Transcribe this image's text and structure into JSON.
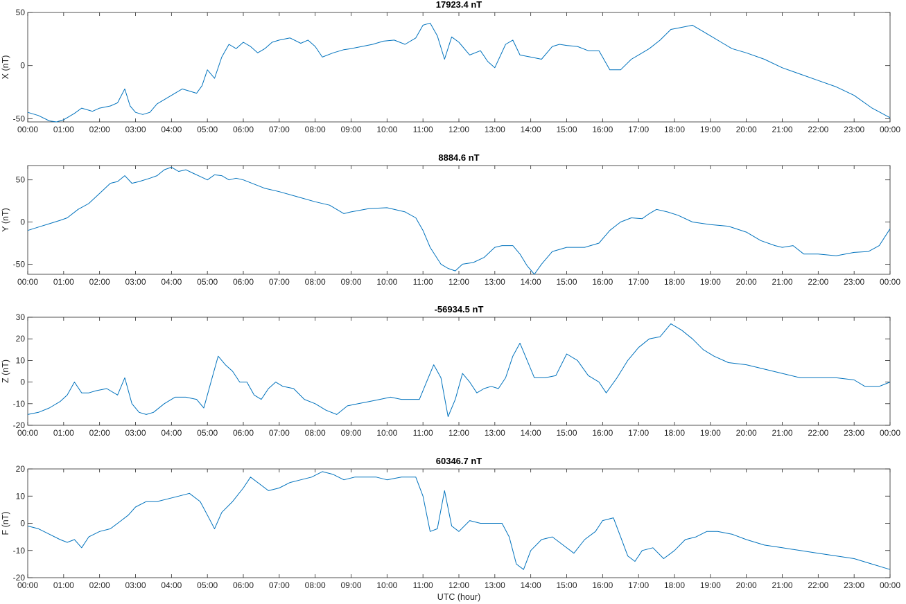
{
  "figure": {
    "xlabel": "UTC (hour)",
    "line_color": "#0072bd"
  },
  "chart_data": [
    {
      "type": "line",
      "title": "17923.4 nT",
      "ylabel": "X (nT)",
      "xlabel": "",
      "ylim": [
        -53,
        50
      ],
      "yticks": [
        -50,
        0,
        50
      ],
      "xticks": [
        "00:00",
        "01:00",
        "02:00",
        "03:00",
        "04:00",
        "05:00",
        "06:00",
        "07:00",
        "08:00",
        "09:00",
        "10:00",
        "11:00",
        "12:00",
        "13:00",
        "14:00",
        "15:00",
        "16:00",
        "17:00",
        "18:00",
        "19:00",
        "20:00",
        "21:00",
        "22:00",
        "23:00",
        "00:00"
      ],
      "xlim": [
        0,
        24
      ],
      "grid": false,
      "series": [
        {
          "x": [
            0,
            0.3,
            0.6,
            0.8,
            1.0,
            1.3,
            1.5,
            1.8,
            2.0,
            2.3,
            2.5,
            2.7,
            2.85,
            3.0,
            3.2,
            3.4,
            3.6,
            3.8,
            4.0,
            4.3,
            4.5,
            4.7,
            4.85,
            5.0,
            5.2,
            5.4,
            5.6,
            5.8,
            6.0,
            6.2,
            6.4,
            6.6,
            6.8,
            7.0,
            7.3,
            7.6,
            7.8,
            8.0,
            8.2,
            8.5,
            8.8,
            9.0,
            9.3,
            9.6,
            9.9,
            10.2,
            10.5,
            10.8,
            11.0,
            11.2,
            11.4,
            11.6,
            11.8,
            12.0,
            12.3,
            12.6,
            12.8,
            13.0,
            13.3,
            13.5,
            13.7,
            14.0,
            14.3,
            14.6,
            14.8,
            15.0,
            15.3,
            15.6,
            15.9,
            16.2,
            16.5,
            16.8,
            17.0,
            17.3,
            17.6,
            17.9,
            18.2,
            18.5,
            18.8,
            19.0,
            19.3,
            19.6,
            20.0,
            20.5,
            21.0,
            21.5,
            22.0,
            22.5,
            23.0,
            23.5,
            24.0
          ],
          "y": [
            -44,
            -47,
            -52,
            -53,
            -51,
            -45,
            -40,
            -43,
            -40,
            -38,
            -35,
            -22,
            -38,
            -44,
            -46,
            -44,
            -36,
            -32,
            -28,
            -22,
            -24,
            -26,
            -19,
            -4,
            -12,
            8,
            20,
            16,
            22,
            18,
            12,
            16,
            22,
            24,
            26,
            21,
            24,
            18,
            8,
            12,
            15,
            16,
            18,
            20,
            23,
            24,
            20,
            26,
            38,
            40,
            28,
            6,
            27,
            22,
            10,
            14,
            4,
            -2,
            20,
            24,
            10,
            8,
            6,
            18,
            20,
            19,
            18,
            14,
            14,
            -4,
            -4,
            6,
            10,
            16,
            24,
            34,
            36,
            38,
            32,
            28,
            22,
            16,
            12,
            6,
            -2,
            -8,
            -14,
            -20,
            -28,
            -40,
            -49
          ]
        }
      ]
    },
    {
      "type": "line",
      "title": "8884.6 nT",
      "ylabel": "Y (nT)",
      "xlabel": "",
      "ylim": [
        -62,
        67
      ],
      "yticks": [
        -50,
        0,
        50
      ],
      "xticks": [
        "00:00",
        "01:00",
        "02:00",
        "03:00",
        "04:00",
        "05:00",
        "06:00",
        "07:00",
        "08:00",
        "09:00",
        "10:00",
        "11:00",
        "12:00",
        "13:00",
        "14:00",
        "15:00",
        "16:00",
        "17:00",
        "18:00",
        "19:00",
        "20:00",
        "21:00",
        "22:00",
        "23:00",
        "00:00"
      ],
      "xlim": [
        0,
        24
      ],
      "grid": false,
      "series": [
        {
          "x": [
            0,
            0.3,
            0.6,
            0.9,
            1.1,
            1.4,
            1.7,
            2.0,
            2.3,
            2.5,
            2.7,
            2.9,
            3.1,
            3.4,
            3.6,
            3.8,
            4.0,
            4.2,
            4.4,
            4.6,
            4.8,
            5.0,
            5.2,
            5.4,
            5.6,
            5.8,
            6.0,
            6.3,
            6.6,
            7.0,
            7.5,
            8.0,
            8.4,
            8.8,
            9.0,
            9.5,
            10.0,
            10.5,
            10.8,
            11.0,
            11.2,
            11.5,
            11.7,
            11.9,
            12.1,
            12.4,
            12.7,
            13.0,
            13.2,
            13.5,
            13.7,
            13.9,
            14.1,
            14.3,
            14.6,
            15.0,
            15.5,
            15.9,
            16.2,
            16.5,
            16.8,
            17.1,
            17.3,
            17.5,
            17.8,
            18.1,
            18.5,
            19.0,
            19.5,
            20.0,
            20.4,
            20.8,
            21.0,
            21.3,
            21.6,
            22.0,
            22.5,
            23.0,
            23.4,
            23.7,
            24.0
          ],
          "y": [
            -10,
            -6,
            -2,
            2,
            5,
            15,
            22,
            34,
            46,
            48,
            55,
            46,
            48,
            52,
            55,
            62,
            65,
            60,
            62,
            58,
            54,
            50,
            56,
            55,
            50,
            52,
            50,
            45,
            40,
            36,
            30,
            24,
            20,
            10,
            12,
            16,
            17,
            12,
            5,
            -10,
            -30,
            -50,
            -55,
            -58,
            -50,
            -48,
            -42,
            -30,
            -28,
            -28,
            -38,
            -52,
            -62,
            -50,
            -35,
            -30,
            -30,
            -25,
            -10,
            0,
            5,
            4,
            10,
            15,
            12,
            8,
            0,
            -3,
            -5,
            -12,
            -22,
            -28,
            -30,
            -28,
            -38,
            -38,
            -40,
            -36,
            -35,
            -28,
            -8
          ]
        }
      ]
    },
    {
      "type": "line",
      "title": "-56934.5 nT",
      "ylabel": "Z (nT)",
      "xlabel": "",
      "ylim": [
        -20,
        30
      ],
      "yticks": [
        -20,
        -10,
        0,
        10,
        20,
        30
      ],
      "xticks": [
        "00:00",
        "01:00",
        "02:00",
        "03:00",
        "04:00",
        "05:00",
        "06:00",
        "07:00",
        "08:00",
        "09:00",
        "10:00",
        "11:00",
        "12:00",
        "13:00",
        "14:00",
        "15:00",
        "16:00",
        "17:00",
        "18:00",
        "19:00",
        "20:00",
        "21:00",
        "22:00",
        "23:00",
        "00:00"
      ],
      "xlim": [
        0,
        24
      ],
      "grid": false,
      "series": [
        {
          "x": [
            0,
            0.3,
            0.6,
            0.9,
            1.1,
            1.3,
            1.5,
            1.7,
            1.9,
            2.2,
            2.5,
            2.7,
            2.9,
            3.1,
            3.3,
            3.5,
            3.8,
            4.1,
            4.4,
            4.7,
            4.9,
            5.1,
            5.3,
            5.5,
            5.7,
            5.9,
            6.1,
            6.3,
            6.5,
            6.7,
            6.9,
            7.1,
            7.4,
            7.7,
            8.0,
            8.3,
            8.6,
            8.9,
            9.2,
            9.5,
            9.8,
            10.1,
            10.4,
            10.7,
            10.9,
            11.1,
            11.3,
            11.5,
            11.7,
            11.9,
            12.1,
            12.3,
            12.5,
            12.7,
            12.9,
            13.1,
            13.3,
            13.5,
            13.7,
            13.9,
            14.1,
            14.4,
            14.7,
            15.0,
            15.3,
            15.6,
            15.9,
            16.1,
            16.4,
            16.7,
            17.0,
            17.3,
            17.6,
            17.9,
            18.2,
            18.5,
            18.8,
            19.1,
            19.5,
            20.0,
            20.5,
            21.0,
            21.5,
            22.0,
            22.5,
            23.0,
            23.3,
            23.7,
            24.0
          ],
          "y": [
            -15,
            -14,
            -12,
            -9,
            -6,
            0,
            -5,
            -5,
            -4,
            -3,
            -6,
            2,
            -10,
            -14,
            -15,
            -14,
            -10,
            -7,
            -7,
            -8,
            -12,
            0,
            12,
            8,
            5,
            0,
            0,
            -6,
            -8,
            -3,
            0,
            -2,
            -3,
            -8,
            -10,
            -13,
            -15,
            -11,
            -10,
            -9,
            -8,
            -7,
            -8,
            -8,
            -8,
            0,
            8,
            2,
            -16,
            -8,
            4,
            0,
            -5,
            -3,
            -2,
            -3,
            2,
            12,
            18,
            10,
            2,
            2,
            3,
            13,
            10,
            3,
            0,
            -5,
            2,
            10,
            16,
            20,
            21,
            27,
            24,
            20,
            15,
            12,
            9,
            8,
            6,
            4,
            2,
            2,
            2,
            1,
            -2,
            -2,
            0
          ]
        }
      ]
    },
    {
      "type": "line",
      "title": "60346.7 nT",
      "ylabel": "F (nT)",
      "xlabel": "UTC (hour)",
      "ylim": [
        -20,
        20
      ],
      "yticks": [
        -20,
        -10,
        0,
        10,
        20
      ],
      "xticks": [
        "00:00",
        "01:00",
        "02:00",
        "03:00",
        "04:00",
        "05:00",
        "06:00",
        "07:00",
        "08:00",
        "09:00",
        "10:00",
        "11:00",
        "12:00",
        "13:00",
        "14:00",
        "15:00",
        "16:00",
        "17:00",
        "18:00",
        "19:00",
        "20:00",
        "21:00",
        "22:00",
        "23:00",
        "00:00"
      ],
      "xlim": [
        0,
        24
      ],
      "grid": false,
      "series": [
        {
          "x": [
            0,
            0.3,
            0.6,
            0.9,
            1.1,
            1.3,
            1.5,
            1.7,
            2.0,
            2.3,
            2.6,
            2.8,
            3.0,
            3.3,
            3.6,
            3.9,
            4.2,
            4.5,
            4.8,
            5.0,
            5.2,
            5.4,
            5.7,
            6.0,
            6.2,
            6.5,
            6.7,
            7.0,
            7.3,
            7.6,
            7.9,
            8.2,
            8.5,
            8.8,
            9.1,
            9.4,
            9.7,
            10.0,
            10.4,
            10.8,
            11.0,
            11.2,
            11.4,
            11.6,
            11.8,
            12.0,
            12.3,
            12.6,
            12.9,
            13.2,
            13.4,
            13.6,
            13.8,
            14.0,
            14.3,
            14.6,
            14.9,
            15.2,
            15.5,
            15.8,
            16.0,
            16.3,
            16.5,
            16.7,
            16.9,
            17.1,
            17.4,
            17.7,
            18.0,
            18.3,
            18.6,
            18.9,
            19.2,
            19.6,
            20.0,
            20.5,
            21.0,
            21.5,
            22.0,
            22.5,
            23.0,
            23.5,
            24.0
          ],
          "y": [
            -1,
            -2,
            -4,
            -6,
            -7,
            -6,
            -9,
            -5,
            -3,
            -2,
            1,
            3,
            6,
            8,
            8,
            9,
            10,
            11,
            8,
            3,
            -2,
            4,
            8,
            13,
            17,
            14,
            12,
            13,
            15,
            16,
            17,
            19,
            18,
            16,
            17,
            17,
            17,
            16,
            17,
            17,
            10,
            -3,
            -2,
            12,
            -1,
            -3,
            1,
            0,
            0,
            0,
            -5,
            -15,
            -17,
            -10,
            -6,
            -5,
            -8,
            -11,
            -6,
            -3,
            1,
            2,
            -5,
            -12,
            -14,
            -10,
            -9,
            -13,
            -10,
            -6,
            -5,
            -3,
            -3,
            -4,
            -6,
            -8,
            -9,
            -10,
            -11,
            -12,
            -13,
            -15,
            -17
          ]
        }
      ]
    }
  ]
}
